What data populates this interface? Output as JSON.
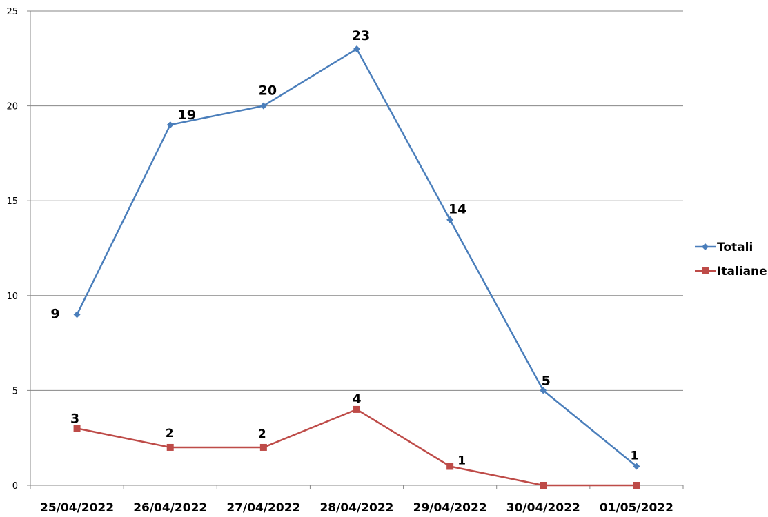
{
  "chart_data": {
    "type": "line",
    "categories": [
      "25/04/2022",
      "26/04/2022",
      "27/04/2022",
      "28/04/2022",
      "29/04/2022",
      "30/04/2022",
      "01/05/2022"
    ],
    "series": [
      {
        "name": "Totali",
        "values": [
          9,
          19,
          20,
          23,
          14,
          5,
          1
        ],
        "color": "#4a7ebb",
        "marker": "diamond"
      },
      {
        "name": "Italiane",
        "values": [
          3,
          2,
          2,
          4,
          1,
          0,
          0
        ],
        "color": "#be4b48",
        "marker": "square"
      }
    ],
    "data_labels": [
      {
        "series": 0,
        "values": [
          "9",
          "19",
          "20",
          "23",
          "14",
          "5",
          "1"
        ]
      },
      {
        "series": 1,
        "values": [
          "3",
          "2",
          "2",
          "4",
          "1",
          "",
          ""
        ]
      }
    ],
    "yticks": [
      "0",
      "5",
      "10",
      "15",
      "20",
      "25"
    ],
    "ylim": [
      0,
      25
    ],
    "grid": true,
    "legend": "right",
    "title": "",
    "xlabel": "",
    "ylabel": ""
  }
}
